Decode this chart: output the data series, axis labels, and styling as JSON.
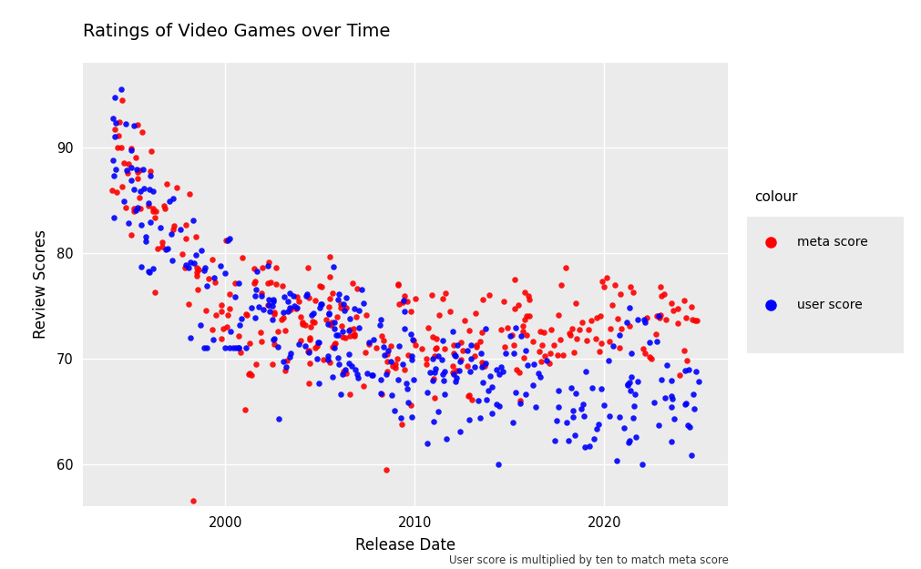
{
  "title": "Ratings of Video Games over Time",
  "xlabel": "Release Date",
  "ylabel": "Review Scores",
  "caption": "User score is multiplied by ten to match meta score",
  "legend_title": "colour",
  "legend_labels": [
    "meta score",
    "user score"
  ],
  "meta_color": "#FF0000",
  "user_color": "#0000FF",
  "bg_color": "#EBEBEB",
  "grid_color": "#FFFFFF",
  "ylim": [
    56,
    98
  ],
  "yticks": [
    60,
    70,
    80,
    90
  ],
  "xticks": [
    2000,
    2010,
    2020
  ],
  "seed": 42,
  "n_points": 400,
  "figsize": [
    10.12,
    6.25
  ],
  "dpi": 100
}
